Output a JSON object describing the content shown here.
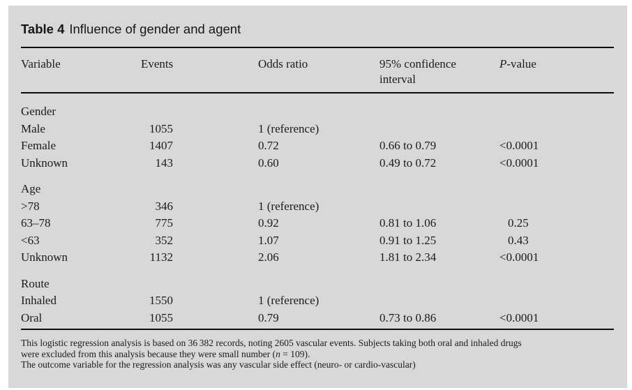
{
  "accent_colors": {
    "panel_background": "#d8d8d8",
    "text": "#1b1b1b",
    "rule": "#0e0e0e"
  },
  "table": {
    "number": "Table 4",
    "caption": "Influence of gender and agent",
    "headers": {
      "variable": "Variable",
      "events": "Events",
      "odds_ratio": "Odds ratio",
      "confidence_interval": "95% confidence interval",
      "pvalue_italic": "P",
      "pvalue_rest": "-value"
    },
    "sections": [
      {
        "label": "Gender",
        "rows": [
          {
            "variable": "Male",
            "events": "1055",
            "odds_ratio": "1 (reference)",
            "confidence_interval": "",
            "p_value": ""
          },
          {
            "variable": "Female",
            "events": "1407",
            "odds_ratio": "0.72",
            "confidence_interval": "0.66 to 0.79",
            "p_value": "<0.0001"
          },
          {
            "variable": "Unknown",
            "events": "143",
            "odds_ratio": "0.60",
            "confidence_interval": "0.49 to 0.72",
            "p_value": "<0.0001"
          }
        ]
      },
      {
        "label": "Age",
        "rows": [
          {
            "variable": ">78",
            "events": "346",
            "odds_ratio": "1 (reference)",
            "confidence_interval": "",
            "p_value": ""
          },
          {
            "variable": "63–78",
            "events": "775",
            "odds_ratio": "0.92",
            "confidence_interval": "0.81 to 1.06",
            "p_value": "0.25"
          },
          {
            "variable": "<63",
            "events": "352",
            "odds_ratio": "1.07",
            "confidence_interval": "0.91 to 1.25",
            "p_value": "0.43"
          },
          {
            "variable": "Unknown",
            "events": "1132",
            "odds_ratio": "2.06",
            "confidence_interval": "1.81 to 2.34",
            "p_value": "<0.0001"
          }
        ]
      },
      {
        "label": "Route",
        "rows": [
          {
            "variable": "Inhaled",
            "events": "1550",
            "odds_ratio": "1 (reference)",
            "confidence_interval": "",
            "p_value": ""
          },
          {
            "variable": "Oral",
            "events": "1055",
            "odds_ratio": "0.79",
            "confidence_interval": "0.73 to 0.86",
            "p_value": "<0.0001"
          }
        ]
      }
    ],
    "footnotes": {
      "line1": "This logistic regression analysis is based on 36 382 records, noting 2605 vascular events. Subjects taking both oral and inhaled drugs",
      "line2_pre": "were excluded from this analysis because they were small number (",
      "line2_n": "n",
      "line2_post": " = 109).",
      "line3": "The outcome variable for the regression analysis was any vascular side effect (neuro- or cardio-vascular)"
    }
  }
}
